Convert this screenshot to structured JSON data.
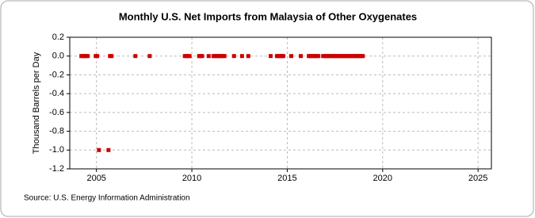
{
  "chart_data": {
    "type": "scatter",
    "title": "Monthly U.S. Net Imports from Malaysia of Other Oxygenates",
    "y_label": "Thousand Barrels per Day",
    "source": "Source: U.S. Energy Information Administration",
    "color": "#cc0000",
    "grid": true,
    "x": [
      2004.21,
      2004.29,
      2004.38,
      2004.46,
      2004.54,
      2004.96,
      2005.04,
      2005.13,
      2005.63,
      2005.71,
      2005.79,
      2007.04,
      2007.79,
      2009.63,
      2009.71,
      2009.79,
      2009.88,
      2010.38,
      2010.46,
      2010.54,
      2010.88,
      2011.13,
      2011.21,
      2011.29,
      2011.38,
      2011.46,
      2011.54,
      2011.63,
      2011.71,
      2012.21,
      2012.63,
      2012.96,
      2014.13,
      2014.46,
      2014.54,
      2014.63,
      2014.71,
      2014.79,
      2015.21,
      2015.71,
      2016.13,
      2016.21,
      2016.29,
      2016.38,
      2016.46,
      2016.54,
      2016.63,
      2016.88,
      2016.96,
      2017.04,
      2017.13,
      2017.21,
      2017.29,
      2017.38,
      2017.46,
      2017.54,
      2017.63,
      2017.71,
      2017.79,
      2017.88,
      2017.96,
      2018.04,
      2018.13,
      2018.21,
      2018.29,
      2018.38,
      2018.46,
      2018.54,
      2018.63,
      2018.71,
      2018.79,
      2018.88,
      2018.96
    ],
    "values": [
      0,
      0,
      0,
      0,
      0,
      0,
      0,
      -1,
      -1,
      0,
      0,
      0,
      0,
      0,
      0,
      0,
      0,
      0,
      0,
      0,
      0,
      0,
      0,
      0,
      0,
      0,
      0,
      0,
      0,
      0,
      0,
      0,
      0,
      0,
      0,
      0,
      0,
      0,
      0,
      0,
      0,
      0,
      0,
      0,
      0,
      0,
      0,
      0,
      0,
      0,
      0,
      0,
      0,
      0,
      0,
      0,
      0,
      0,
      0,
      0,
      0,
      0,
      0,
      0,
      0,
      0,
      0,
      0,
      0,
      0,
      0,
      0,
      0
    ],
    "xlim": [
      2003.6,
      2025.7
    ],
    "xticks": [
      2005,
      2010,
      2015,
      2020,
      2025
    ],
    "ylim": [
      -1.2,
      0.2
    ],
    "yticks": [
      0.2,
      {
        "value": 0,
        "label": "0.0"
      },
      -0.2,
      -0.4,
      -0.6,
      -0.8,
      {
        "value": -1,
        "label": "-1.0"
      },
      -1.2
    ]
  }
}
